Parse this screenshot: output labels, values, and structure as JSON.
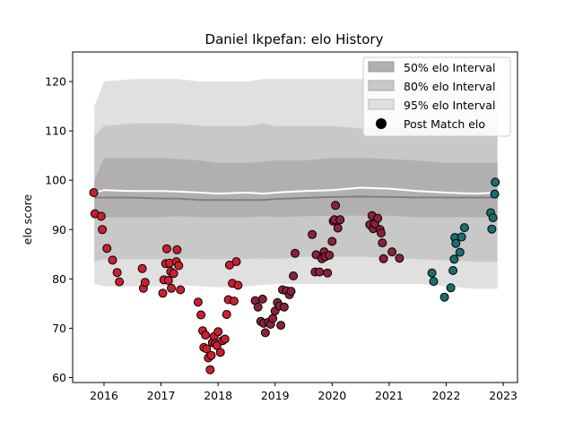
{
  "chart_data": {
    "type": "scatter",
    "title": "Daniel Ikpefan: elo History",
    "xlabel": "",
    "ylabel": "elo score",
    "xlim": [
      2015.45,
      2023.25
    ],
    "ylim": [
      59,
      126
    ],
    "xticks": [
      2016,
      2017,
      2018,
      2019,
      2020,
      2021,
      2022,
      2023
    ],
    "yticks": [
      60,
      70,
      80,
      90,
      100,
      110,
      120
    ],
    "grid": false,
    "legend_placement": "top-right",
    "legend": [
      "50% elo Interval",
      "80% elo Interval",
      "95% elo Interval",
      "Post Match elo"
    ],
    "colors": {
      "band_50": "#b0b0b0",
      "band_80": "#c8c8c8",
      "band_95": "#e0e0e0",
      "median_line": "#808080",
      "mean_line": "#ffffff",
      "point_edge": "#000000"
    },
    "bands": {
      "x": [
        2015.83,
        2016.0,
        2016.5,
        2017.0,
        2017.3,
        2017.7,
        2018.0,
        2018.5,
        2018.8,
        2019.0,
        2019.5,
        2020.0,
        2020.5,
        2021.0,
        2021.5,
        2022.0,
        2022.5,
        2022.9
      ],
      "p95_low": [
        79,
        78.5,
        78.5,
        78.5,
        78.7,
        78.5,
        78.3,
        78.5,
        78.8,
        79.0,
        79.0,
        79.0,
        79.0,
        79.0,
        79.0,
        78.5,
        78.0,
        78.0
      ],
      "p95_high": [
        115,
        120,
        120.5,
        120.5,
        120.5,
        120,
        120,
        120,
        120.5,
        120.5,
        120.5,
        120.5,
        120.5,
        120.5,
        120.5,
        120.5,
        120.5,
        120.5
      ],
      "p80_low": [
        83.5,
        84,
        84,
        84,
        84.2,
        84,
        84,
        84,
        84.2,
        84,
        84.5,
        84.5,
        84.5,
        84.3,
        84,
        83.8,
        83.5,
        83.5
      ],
      "p80_high": [
        109,
        111,
        111.5,
        111.5,
        111.5,
        111,
        111,
        111,
        111.5,
        111,
        111,
        111,
        110.5,
        110.5,
        110.5,
        110.5,
        110.5,
        110.5
      ],
      "p50_low": [
        92.5,
        92.5,
        92.5,
        92.5,
        92.7,
        92.5,
        92.5,
        92.5,
        92.7,
        92.5,
        92.7,
        92.8,
        92.8,
        92.8,
        92.5,
        92.5,
        92.5,
        92.5
      ],
      "p50_high": [
        100,
        104.5,
        104.5,
        104.5,
        104.3,
        104,
        103.5,
        103.5,
        103.8,
        104,
        104,
        104.5,
        104.5,
        104.3,
        104,
        103.5,
        103.5,
        103.5
      ],
      "median": [
        96.5,
        96.5,
        96.5,
        96.3,
        96.3,
        96,
        96,
        96,
        96,
        96.2,
        96.4,
        96.6,
        96.7,
        96.6,
        96.5,
        96.5,
        96.5,
        96.5
      ],
      "mean": [
        97.5,
        98,
        97.8,
        97.8,
        97.7,
        97.5,
        97.3,
        97.5,
        97.3,
        97.5,
        97.8,
        98.0,
        98.5,
        98.3,
        97.8,
        97.5,
        97.3,
        97.5
      ]
    },
    "series": [
      {
        "color": "#cc1f30",
        "points": [
          [
            2015.82,
            97.5
          ],
          [
            2015.84,
            93.2
          ],
          [
            2015.95,
            92.7
          ],
          [
            2015.97,
            90.0
          ],
          [
            2016.05,
            86.2
          ],
          [
            2016.15,
            83.8
          ],
          [
            2016.23,
            81.3
          ],
          [
            2016.27,
            79.4
          ],
          [
            2016.67,
            82.1
          ],
          [
            2016.69,
            78.1
          ],
          [
            2016.72,
            79.3
          ],
          [
            2017.03,
            77.1
          ],
          [
            2017.05,
            79.8
          ],
          [
            2017.08,
            83.1
          ],
          [
            2017.1,
            86.1
          ],
          [
            2017.13,
            79.7
          ],
          [
            2017.15,
            83.2
          ],
          [
            2017.17,
            81.5
          ],
          [
            2017.18,
            78.1
          ],
          [
            2017.22,
            81.1
          ],
          [
            2017.27,
            83.5
          ],
          [
            2017.28,
            85.9
          ],
          [
            2017.31,
            82.7
          ],
          [
            2017.34,
            77.8
          ],
          [
            2017.65,
            75.3
          ],
          [
            2017.7,
            72.7
          ],
          [
            2017.73,
            69.5
          ],
          [
            2017.75,
            66.1
          ],
          [
            2017.78,
            68.6
          ],
          [
            2017.8,
            65.8
          ],
          [
            2017.83,
            64.0
          ],
          [
            2017.86,
            61.6
          ],
          [
            2017.88,
            64.5
          ],
          [
            2017.9,
            67.1
          ],
          [
            2017.93,
            68.3
          ],
          [
            2017.95,
            66.9
          ],
          [
            2017.98,
            66.5
          ],
          [
            2018.0,
            69.3
          ],
          [
            2018.04,
            65.1
          ],
          [
            2018.08,
            67.5
          ],
          [
            2018.12,
            67.8
          ],
          [
            2018.15,
            72.8
          ],
          [
            2018.18,
            75.8
          ],
          [
            2018.2,
            82.8
          ],
          [
            2018.25,
            79.1
          ],
          [
            2018.28,
            75.5
          ],
          [
            2018.32,
            83.5
          ],
          [
            2018.35,
            78.7
          ]
        ]
      },
      {
        "color": "#8b2238",
        "points": [
          [
            2018.65,
            75.6
          ],
          [
            2018.7,
            74.3
          ],
          [
            2018.75,
            71.4
          ],
          [
            2018.78,
            75.9
          ],
          [
            2018.8,
            71.0
          ],
          [
            2018.83,
            69.1
          ],
          [
            2018.88,
            71.2
          ],
          [
            2018.92,
            70.8
          ],
          [
            2018.96,
            72.0
          ],
          [
            2019.0,
            73.5
          ],
          [
            2019.04,
            75.2
          ],
          [
            2019.08,
            74.5
          ],
          [
            2019.1,
            70.6
          ],
          [
            2019.13,
            77.8
          ],
          [
            2019.16,
            74.3
          ],
          [
            2019.2,
            77.6
          ],
          [
            2019.25,
            76.8
          ],
          [
            2019.28,
            77.5
          ],
          [
            2019.32,
            80.6
          ],
          [
            2019.35,
            85.2
          ],
          [
            2019.65,
            89.0
          ],
          [
            2019.7,
            81.4
          ],
          [
            2019.72,
            84.9
          ],
          [
            2019.78,
            81.4
          ],
          [
            2019.82,
            84.1
          ],
          [
            2019.86,
            85.5
          ],
          [
            2019.88,
            84.5
          ],
          [
            2019.92,
            81.2
          ],
          [
            2019.95,
            84.8
          ],
          [
            2020.0,
            87.6
          ],
          [
            2020.02,
            91.7
          ],
          [
            2020.04,
            92.0
          ],
          [
            2020.06,
            94.9
          ],
          [
            2020.1,
            90.3
          ],
          [
            2020.14,
            92.0
          ],
          [
            2020.66,
            91.0
          ],
          [
            2020.7,
            92.8
          ],
          [
            2020.72,
            90.2
          ],
          [
            2020.75,
            91.2
          ],
          [
            2020.8,
            92.3
          ],
          [
            2020.84,
            90.0
          ],
          [
            2020.86,
            89.3
          ],
          [
            2020.88,
            87.3
          ],
          [
            2020.9,
            84.1
          ],
          [
            2021.05,
            85.5
          ],
          [
            2021.18,
            84.2
          ]
        ]
      },
      {
        "color": "#1a6e6e",
        "points": [
          [
            2021.75,
            81.2
          ],
          [
            2021.78,
            79.5
          ],
          [
            2021.97,
            76.3
          ],
          [
            2022.08,
            78.2
          ],
          [
            2022.12,
            81.7
          ],
          [
            2022.14,
            84.0
          ],
          [
            2022.15,
            88.4
          ],
          [
            2022.17,
            87.2
          ],
          [
            2022.24,
            85.4
          ],
          [
            2022.27,
            88.5
          ],
          [
            2022.32,
            90.4
          ],
          [
            2022.78,
            93.4
          ],
          [
            2022.8,
            90.1
          ],
          [
            2022.82,
            92.4
          ],
          [
            2022.85,
            97.2
          ],
          [
            2022.86,
            99.6
          ]
        ]
      }
    ]
  }
}
